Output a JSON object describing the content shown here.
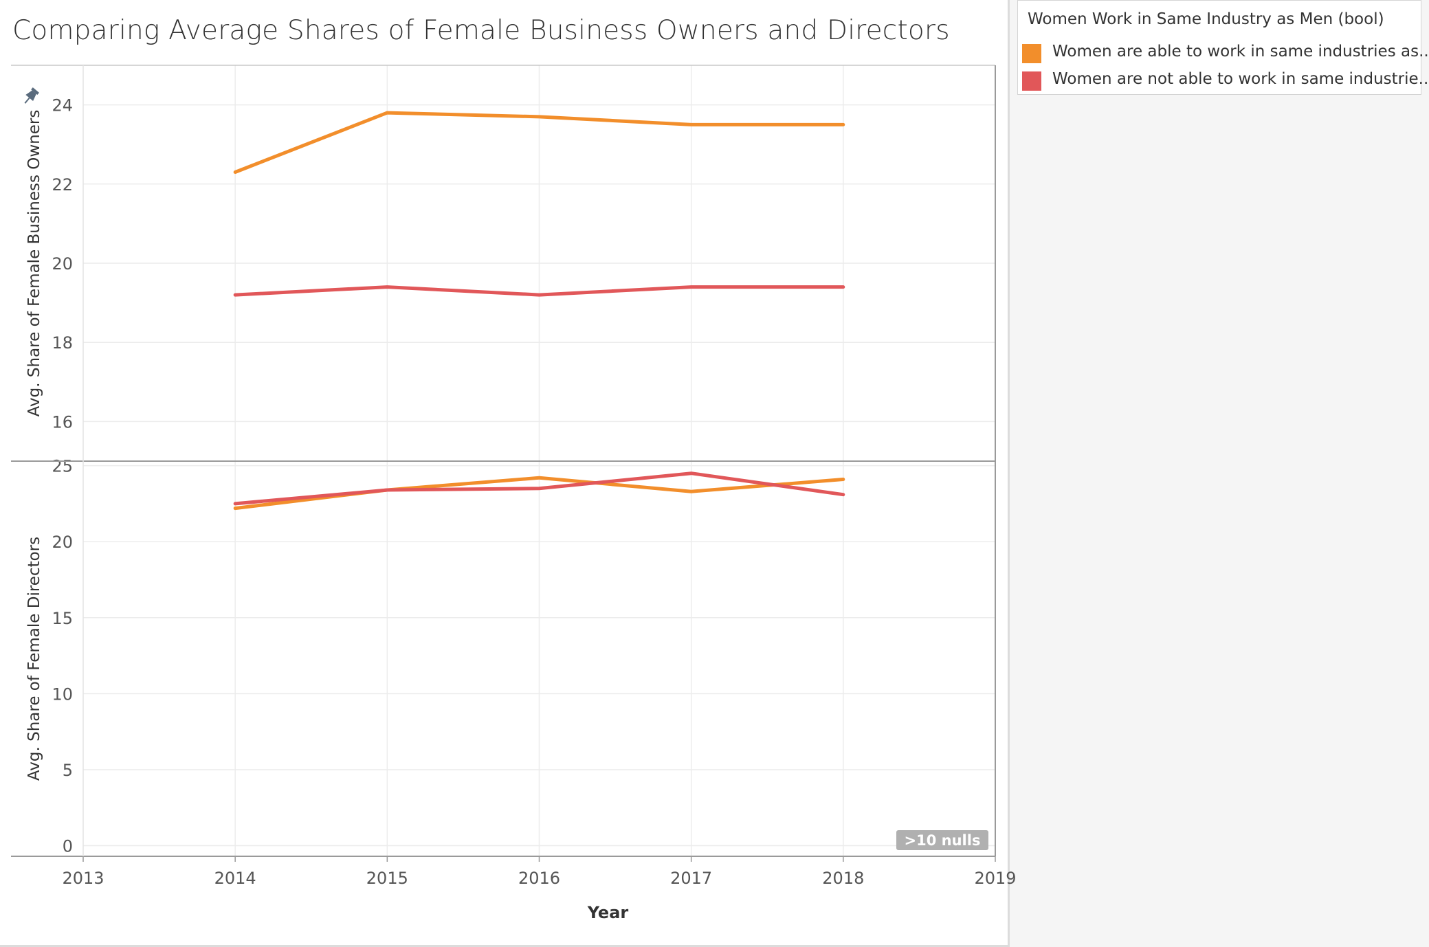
{
  "title": "Comparing Average Shares of Female Business Owners and Directors",
  "legend": {
    "title": "Women Work in Same Industry as Men (bool)",
    "items": [
      {
        "label": "Women are able to work in same industries as..",
        "color": "#f28e2b"
      },
      {
        "label": "Women are not able to work in same industrie..",
        "color": "#e15759"
      }
    ]
  },
  "chart_data": [
    {
      "type": "line",
      "ylabel": "Avg. Share of Female Business Owners",
      "ylim": [
        15,
        25
      ],
      "yticks": [
        16,
        18,
        20,
        22,
        24
      ],
      "xlim": [
        2013,
        2019
      ],
      "grid": true,
      "pinned": true,
      "x": [
        2014,
        2015,
        2016,
        2017,
        2018
      ],
      "series": [
        {
          "name": "Women are able to work in same industries as..",
          "color": "#f28e2b",
          "values": [
            22.3,
            23.8,
            23.7,
            23.5,
            23.5
          ]
        },
        {
          "name": "Women are not able to work in same industrie..",
          "color": "#e15759",
          "values": [
            19.2,
            19.4,
            19.2,
            19.4,
            19.4
          ]
        }
      ]
    },
    {
      "type": "line",
      "ylabel": "Avg. Share of Female Directors",
      "xlabel": "Year",
      "ylim": [
        -0.7,
        25.3
      ],
      "yticks": [
        0,
        5,
        10,
        15,
        20,
        25
      ],
      "xlim": [
        2013,
        2019
      ],
      "xticks": [
        2013,
        2014,
        2015,
        2016,
        2017,
        2018,
        2019
      ],
      "grid": true,
      "x": [
        2014,
        2015,
        2016,
        2017,
        2018
      ],
      "series": [
        {
          "name": "Women are able to work in same industries as..",
          "color": "#f28e2b",
          "values": [
            22.2,
            23.4,
            24.2,
            23.3,
            24.1
          ]
        },
        {
          "name": "Women are not able to work in same industrie..",
          "color": "#e15759",
          "values": [
            22.5,
            23.4,
            23.5,
            24.5,
            23.1
          ]
        }
      ],
      "annotation": ">10 nulls"
    }
  ]
}
